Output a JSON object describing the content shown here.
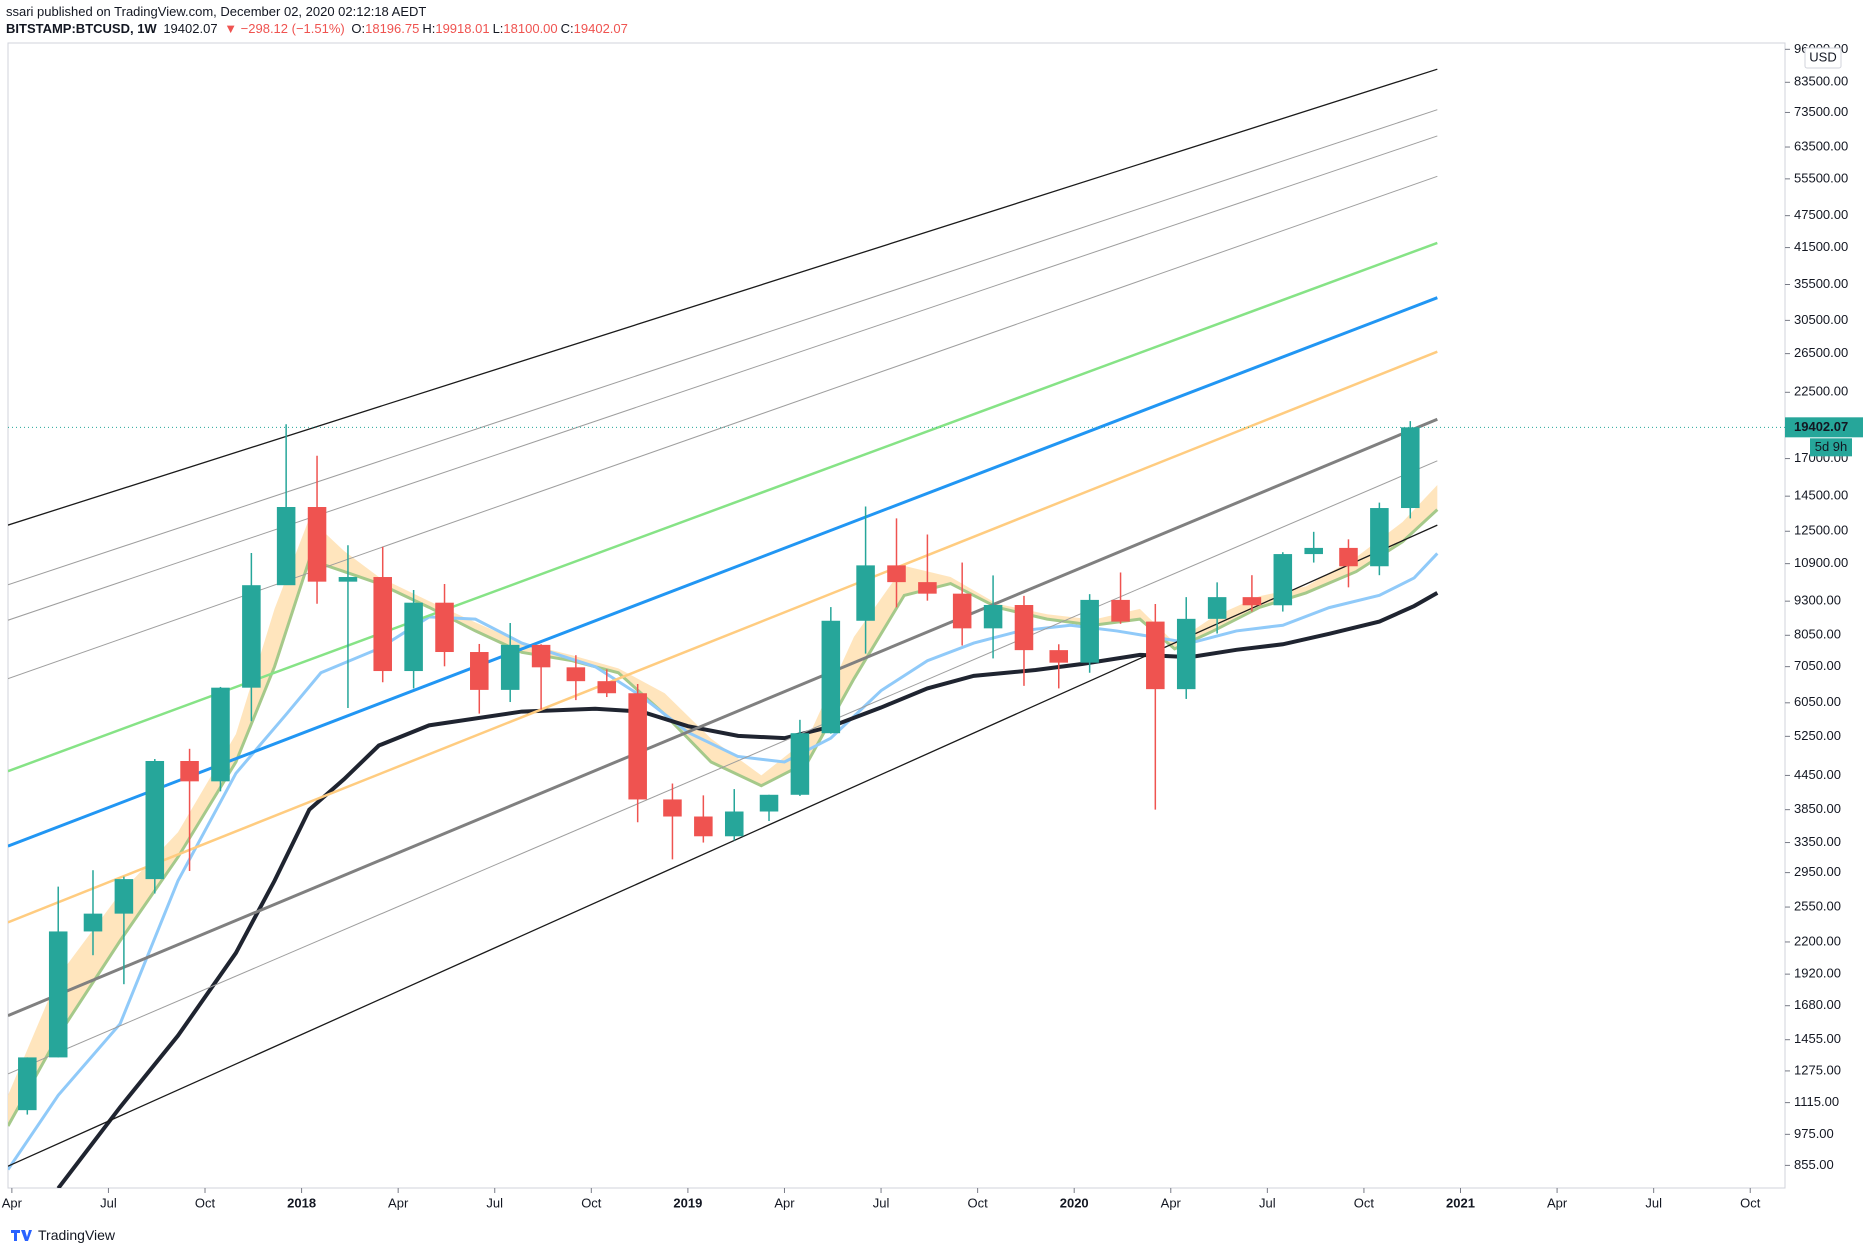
{
  "header": {
    "attribution": "ssari published on TradingView.com, December 02, 2020 02:12:18 AEDT",
    "symbol": "BITSTAMP:BTCUSD, 1W",
    "change": "▼ −298.12 (−1.51%)",
    "ohlc": [
      {
        "label": "O:",
        "value": "18196.75"
      },
      {
        "label": "H:",
        "value": "19918.01"
      },
      {
        "label": "L:",
        "value": "18100.00"
      },
      {
        "label": "C:",
        "value": "19402.07"
      }
    ]
  },
  "footer": {
    "brand": "TradingView"
  },
  "chart_data": {
    "type": "candlestick",
    "currency": "USD",
    "last_price": 19402.07,
    "countdown": "5d 9h",
    "up_color": "#26a69a",
    "down_color": "#ef5350",
    "log_scale": true,
    "grid": false,
    "xlim": [
      2017.24,
      2021.84
    ],
    "ylim": [
      777,
      98600
    ],
    "xticks": [
      {
        "value": 2017.25,
        "label": "Apr"
      },
      {
        "value": 2017.5,
        "label": "Jul"
      },
      {
        "value": 2017.75,
        "label": "Oct"
      },
      2018,
      {
        "value": 2018.25,
        "label": "Apr"
      },
      {
        "value": 2018.5,
        "label": "Jul"
      },
      {
        "value": 2018.75,
        "label": "Oct"
      },
      2019,
      {
        "value": 2019.25,
        "label": "Apr"
      },
      {
        "value": 2019.5,
        "label": "Jul"
      },
      {
        "value": 2019.75,
        "label": "Oct"
      },
      2020,
      {
        "value": 2020.25,
        "label": "Apr"
      },
      {
        "value": 2020.5,
        "label": "Jul"
      },
      {
        "value": 2020.75,
        "label": "Oct"
      },
      2021,
      {
        "value": 2021.25,
        "label": "Apr"
      },
      {
        "value": 2021.5,
        "label": "Jul"
      },
      {
        "value": 2021.75,
        "label": "Oct"
      }
    ],
    "yticks": [
      {
        "value": 96000,
        "label": "96000.00"
      },
      {
        "value": 83500,
        "label": "83500.00"
      },
      {
        "value": 73500,
        "label": "73500.00"
      },
      {
        "value": 63500,
        "label": "63500.00"
      },
      {
        "value": 55500,
        "label": "55500.00"
      },
      {
        "value": 47500,
        "label": "47500.00"
      },
      {
        "value": 41500,
        "label": "41500.00"
      },
      {
        "value": 35500,
        "label": "35500.00"
      },
      {
        "value": 30500,
        "label": "30500.00"
      },
      {
        "value": 26500,
        "label": "26500.00"
      },
      {
        "value": 22500,
        "label": "22500.00"
      },
      {
        "value": 17000,
        "label": "17000.00"
      },
      {
        "value": 14500,
        "label": "14500.00"
      },
      {
        "value": 12500,
        "label": "12500.00"
      },
      {
        "value": 10900,
        "label": "10900.00"
      },
      {
        "value": 9300,
        "label": "9300.00"
      },
      {
        "value": 8050,
        "label": "8050.00"
      },
      {
        "value": 7050,
        "label": "7050.00"
      },
      {
        "value": 6050,
        "label": "6050.00"
      },
      {
        "value": 5250,
        "label": "5250.00"
      },
      {
        "value": 4450,
        "label": "4450.00"
      },
      {
        "value": 3850,
        "label": "3850.00"
      },
      {
        "value": 3350,
        "label": "3350.00"
      },
      {
        "value": 2950,
        "label": "2950.00"
      },
      {
        "value": 2550,
        "label": "2550.00"
      },
      {
        "value": 2200,
        "label": "2200.00"
      },
      {
        "value": 1920,
        "label": "1920.00"
      },
      {
        "value": 1680,
        "label": "1680.00"
      },
      {
        "value": 1455,
        "label": "1455.00"
      },
      {
        "value": 1275,
        "label": "1275.00"
      },
      {
        "value": 1115,
        "label": "1115.00"
      },
      {
        "value": 975,
        "label": "975.00"
      },
      {
        "value": 855,
        "label": "855.00"
      }
    ],
    "x": [
      2017.29,
      2017.37,
      2017.46,
      2017.54,
      2017.62,
      2017.71,
      2017.79,
      2017.87,
      2017.96,
      2018.04,
      2018.12,
      2018.21,
      2018.29,
      2018.37,
      2018.46,
      2018.54,
      2018.62,
      2018.71,
      2018.79,
      2018.87,
      2018.96,
      2019.04,
      2019.12,
      2019.21,
      2019.29,
      2019.37,
      2019.46,
      2019.54,
      2019.62,
      2019.71,
      2019.79,
      2019.87,
      2019.96,
      2020.04,
      2020.12,
      2020.21,
      2020.29,
      2020.37,
      2020.46,
      2020.54,
      2020.62,
      2020.71,
      2020.79,
      2020.87
    ],
    "open": [
      1080,
      1350,
      2300,
      2480,
      2870,
      4730,
      4340,
      6450,
      9950,
      13850,
      10100,
      10300,
      6920,
      9240,
      7500,
      6390,
      7730,
      7030,
      6630,
      6300,
      4020,
      3740,
      3440,
      3820,
      4100,
      5320,
      8560,
      10820,
      10080,
      9600,
      8290,
      9150,
      7560,
      7170,
      9350,
      8530,
      6410,
      8630,
      9460,
      9140,
      11350,
      11650,
      10780,
      13790
    ],
    "high": [
      1350,
      2780,
      2980,
      2900,
      4770,
      4980,
      6470,
      11400,
      19660,
      17200,
      11780,
      11700,
      9750,
      10000,
      7760,
      8480,
      7750,
      7400,
      6970,
      6550,
      4300,
      4090,
      4200,
      4100,
      5630,
      9070,
      13880,
      13200,
      12330,
      10950,
      10370,
      9510,
      7750,
      9580,
      10500,
      9190,
      9460,
      10070,
      10380,
      11440,
      12470,
      12080,
      14110,
      19918.01
    ],
    "low": [
      1060,
      1350,
      2080,
      1840,
      2700,
      2970,
      4160,
      5600,
      10900,
      9200,
      5920,
      6600,
      6430,
      7060,
      5780,
      6070,
      5880,
      6120,
      6200,
      3650,
      3120,
      3350,
      3380,
      3670,
      4080,
      5310,
      7450,
      9060,
      9320,
      7710,
      7300,
      6500,
      6430,
      6870,
      8450,
      3850,
      6150,
      8110,
      8900,
      8900,
      10950,
      9860,
      10380,
      13200
    ],
    "close": [
      1350,
      2300,
      2480,
      2870,
      4730,
      4340,
      6450,
      9950,
      13850,
      10100,
      10300,
      6920,
      9240,
      7500,
      6390,
      7730,
      7030,
      6630,
      6300,
      4020,
      3740,
      3440,
      3820,
      4100,
      5320,
      8560,
      10820,
      10080,
      9600,
      8290,
      9150,
      7560,
      7170,
      9350,
      8530,
      6410,
      8630,
      9460,
      9140,
      11350,
      11650,
      10780,
      13790,
      19402.07
    ],
    "trend_lines": [
      {
        "color": "#1a1a1a",
        "x": [
          2017.24,
          2020.94
        ],
        "values": [
          12830,
          88260
        ]
      },
      {
        "color": "#9e9e9e",
        "x": [
          2017.24,
          2020.94
        ],
        "values": [
          9970,
          74370
        ]
      },
      {
        "color": "#9e9e9e",
        "x": [
          2017.24,
          2020.94
        ],
        "values": [
          8580,
          66550
        ]
      },
      {
        "color": "#9e9e9e",
        "x": [
          2017.24,
          2020.94
        ],
        "values": [
          6700,
          56100
        ]
      },
      {
        "color": "#86e386",
        "x": [
          2017.24,
          2020.94
        ],
        "values": [
          4530,
          42330
        ]
      },
      {
        "color": "#2196f3",
        "x": [
          2017.24,
          2020.94
        ],
        "values": [
          3300,
          33570
        ]
      },
      {
        "color": "#ffcc80",
        "x": [
          2017.24,
          2020.94
        ],
        "values": [
          2390,
          26720
        ]
      },
      {
        "color": "#808080",
        "x": [
          2017.24,
          2020.94
        ],
        "values": [
          1611,
          20080
        ]
      },
      {
        "color": "#9e9e9e",
        "x": [
          2017.24,
          2020.94
        ],
        "values": [
          1259,
          16840
        ]
      },
      {
        "color": "#1a1a1a",
        "x": [
          2017.24,
          2020.94
        ],
        "values": [
          852,
          12830
        ]
      }
    ],
    "band": {
      "color": "#ffe0b2",
      "line_color": "#a5c98a",
      "x": [
        2017.24,
        2017.37,
        2017.53,
        2017.68,
        2017.83,
        2017.93,
        2018.02,
        2018.11,
        2018.2,
        2018.33,
        2018.45,
        2018.57,
        2018.7,
        2018.82,
        2018.94,
        2019.06,
        2019.19,
        2019.31,
        2019.43,
        2019.56,
        2019.68,
        2019.8,
        2019.93,
        2020.05,
        2020.17,
        2020.26,
        2020.36,
        2020.48,
        2020.6,
        2020.73,
        2020.85,
        2020.94
      ],
      "upper": [
        1150,
        1900,
        2700,
        3500,
        5300,
        9000,
        13200,
        11500,
        10300,
        9300,
        8500,
        7800,
        7400,
        7000,
        6300,
        5200,
        4450,
        5200,
        8000,
        10800,
        10300,
        9200,
        8800,
        8600,
        9000,
        7800,
        8700,
        9500,
        9900,
        11200,
        13000,
        15200
      ],
      "lower": [
        1010,
        1480,
        2210,
        3150,
        4710,
        7050,
        11080,
        10540,
        10020,
        9060,
        8200,
        7490,
        7230,
        6870,
        5760,
        4710,
        4260,
        4710,
        6700,
        9530,
        10020,
        9060,
        8620,
        8400,
        8620,
        7600,
        8200,
        9060,
        9630,
        10540,
        11960,
        13700
      ]
    },
    "moving_averages": [
      {
        "color": "#90caf9",
        "x": [
          2017.24,
          2017.37,
          2017.53,
          2017.68,
          2017.83,
          2017.96,
          2018.05,
          2018.2,
          2018.33,
          2018.45,
          2018.57,
          2018.76,
          2018.88,
          2019.0,
          2019.13,
          2019.25,
          2019.37,
          2019.5,
          2019.62,
          2019.74,
          2019.86,
          2019.99,
          2020.11,
          2020.3,
          2020.42,
          2020.54,
          2020.66,
          2020.79,
          2020.88,
          2020.94
        ],
        "values": [
          840,
          1150,
          1555,
          2850,
          4490,
          5760,
          6870,
          7610,
          8700,
          8620,
          7790,
          7050,
          6220,
          5340,
          4820,
          4710,
          5210,
          6370,
          7230,
          7790,
          8200,
          8400,
          8200,
          7790,
          8200,
          8400,
          9050,
          9530,
          10260,
          11380
        ]
      },
      {
        "color": "#1f2430",
        "x": [
          2017.37,
          2017.53,
          2017.68,
          2017.83,
          2017.93,
          2018.02,
          2018.11,
          2018.2,
          2018.33,
          2018.57,
          2018.76,
          2018.88,
          2019.0,
          2019.13,
          2019.25,
          2019.37,
          2019.5,
          2019.62,
          2019.74,
          2019.9,
          2020.02,
          2020.17,
          2020.3,
          2020.42,
          2020.54,
          2020.66,
          2020.79,
          2020.88,
          2020.94
        ],
        "values": [
          776,
          1093,
          1480,
          2100,
          2850,
          3850,
          4380,
          5050,
          5500,
          5830,
          5900,
          5830,
          5480,
          5260,
          5210,
          5470,
          5930,
          6430,
          6780,
          6950,
          7130,
          7410,
          7340,
          7570,
          7750,
          8100,
          8530,
          9110,
          9630
        ]
      }
    ]
  }
}
